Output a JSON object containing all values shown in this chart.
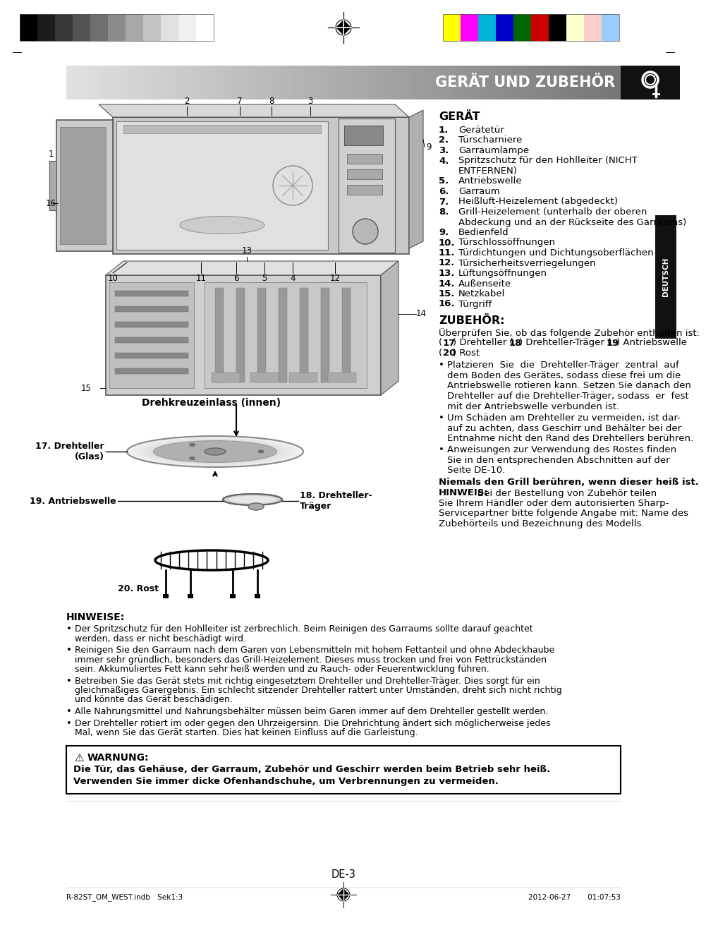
{
  "page_bg": "#ffffff",
  "header_title": "GERÄT UND ZUBEHÖR",
  "sidebar_label": "DEUTSCH",
  "section_title_1": "GERÄT",
  "section_title_2": "ZUBEHÖR:",
  "gear_items": [
    {
      "num": "1.",
      "text": "Gerätetür"
    },
    {
      "num": "2.",
      "text": "Türscharniere"
    },
    {
      "num": "3.",
      "text": "Garraumlampe"
    },
    {
      "num": "4.",
      "text": "Spritzschutz für den Hohlleiter (NICHT\nENTFERNEN)"
    },
    {
      "num": "5.",
      "text": "Antriebswelle"
    },
    {
      "num": "6.",
      "text": "Garraum"
    },
    {
      "num": "7.",
      "text": "Heißluft-Heizelement (abgedeckt)"
    },
    {
      "num": "8.",
      "text": "Grill-Heizelement (unterhalb der oberen\nAbdeckung und an der Rückseite des Garraums)"
    },
    {
      "num": "9.",
      "text": "Bedienfeld"
    },
    {
      "num": "10.",
      "text": "Türschlossöffnungen"
    },
    {
      "num": "11.",
      "text": "Türdichtungen und Dichtungsoberflächen"
    },
    {
      "num": "12.",
      "text": "Türsicherheitsverriegelungen"
    },
    {
      "num": "13.",
      "text": "Lüftungsöffnungen"
    },
    {
      "num": "14.",
      "text": "Außenseite"
    },
    {
      "num": "15.",
      "text": "Netzkabel"
    },
    {
      "num": "16.",
      "text": "Türgriff"
    }
  ],
  "zubehor_intro_lines": [
    "Überprüfen Sie, ob das folgende Zubehör enthalten ist:",
    "(​17​) Drehteller (​18​) Drehteller-Träger (​19​) Antriebswelle",
    "(​20​) Rost"
  ],
  "zubehor_intro_bold": [
    [
      "17",
      "18",
      "19",
      "20"
    ]
  ],
  "zubehor_bullets": [
    "Platzieren  Sie  die  Drehteller-Träger  zentral  auf\ndem Boden des Gerätes, sodass diese frei um die\nAntriebswelle rotieren kann. Setzen Sie danach den\nDrehteller auf die Drehteller-Träger, sodass  er  fest\nmit der Antriebswelle verbunden ist.",
    "Um Schäden am Drehteller zu vermeiden, ist dar-\nauf zu achten, dass Geschirr und Behälter bei der\nEntnahme nicht den Rand des Drehtellers berühren.",
    "Anweisungen zur Verwendung des Rostes finden\nSie in den entsprechenden Abschnitten auf der\nSeite DE-10."
  ],
  "bold_line": "Niemals den Grill berühren, wenn dieser heiß ist.",
  "hinweis_lines": [
    "HINWEIS: Bei der Bestellung von Zubehör teilen",
    "Sie Ihrem Händler oder dem autorisierten Sharp-",
    "Servicepartner bitte folgende Angabe mit: Name des",
    "Zubehörteils und Bezeichnung des Modells."
  ],
  "label_17": "17. Drehteller",
  "label_17b": "(Glas)",
  "label_18a": "18. Drehteller-",
  "label_18b": "Träger",
  "label_19": "19. Antriebswelle",
  "label_20": "20. Rost",
  "label_innen": "Drehkreuzeinlass (innen)",
  "hinweise_title": "HINWEISE:",
  "hinweise_bullets": [
    "Der Spritzschutz für den Hohlleiter ist zerbrechlich. Beim Reinigen des Garraums sollte darauf geachtet\nwerden, dass er nicht beschädigt wird.",
    "Reinigen Sie den Garraum nach dem Garen von Lebensmitteln mit hohem Fettanteil und ohne Abdeckhaube\nimmer sehr gründlich, besonders das Grill-Heizelement. Dieses muss trocken und frei von Fettrückständen\nsein. Akkumuliertes Fett kann sehr heiß werden und zu Rauch- oder Feuerentwicklung führen.",
    "Betreiben Sie das Gerät stets mit richtig eingesetztem Drehteller und Drehteller-Träger. Dies sorgt für ein\ngleichmäßiges Garergebnis. Ein schlecht sitzender Drehteller rattert unter Umständen, dreht sich nicht richtig\nund könnte das Gerät beschädigen.",
    "Alle Nahrungsmittel und Nahrungsbehälter müssen beim Garen immer auf dem Drehteller gestellt werden.",
    "Der Drehteller rotiert im oder gegen den Uhrzeigersinn. Die Drehrichtung ändert sich möglicherweise jedes\nMal, wenn Sie das Gerät starten. Dies hat keinen Einfluss auf die Garleistung."
  ],
  "warnung_title": "WARNUNG:",
  "warnung_text_lines": [
    "Die Tür, das Gehäuse, der Garraum, Zubehör und Geschirr werden beim Betrieb sehr heiß.",
    "Verwenden Sie immer dicke Ofenhandschuhe, um Verbrennungen zu vermeiden."
  ],
  "page_number": "DE-3",
  "footer_left": "R-82ST_OM_WEST.indb Sek1:3",
  "footer_right": "2012-06-27   01:07:53",
  "colors_left": [
    "#000000",
    "#1c1c1c",
    "#383838",
    "#545454",
    "#707070",
    "#8c8c8c",
    "#a8a8a8",
    "#c4c4c4",
    "#e0e0e0",
    "#f0f0f0",
    "#ffffff"
  ],
  "colors_right": [
    "#ffff00",
    "#ff00ff",
    "#00b4d8",
    "#0000cc",
    "#006600",
    "#cc0000",
    "#000000",
    "#ffffcc",
    "#ffcccc",
    "#99ccff"
  ]
}
